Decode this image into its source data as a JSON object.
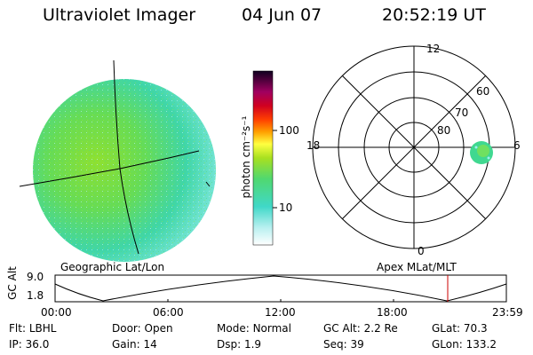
{
  "header": {
    "title": "Ultraviolet Imager",
    "date": "04 Jun 07",
    "time": "20:52:19 UT"
  },
  "colorbar": {
    "unit_label": "photon cm⁻²s⁻¹",
    "ticks": [
      "100",
      "10"
    ]
  },
  "polar_plot": {
    "lat_labels": [
      "80",
      "70",
      "60"
    ],
    "mlt_labels": {
      "top": "12",
      "left": "18",
      "right": "6",
      "bottom": "0"
    }
  },
  "timeline": {
    "left_title": "Geographic Lat/Lon",
    "right_title": "Apex MLat/MLT",
    "y_axis_label": "GC Alt",
    "y_ticks": [
      "9.0",
      "1.8"
    ],
    "x_ticks": [
      "00:00",
      "06:00",
      "12:00",
      "18:00",
      "23:59"
    ],
    "marker_color": "#cc0000"
  },
  "info": {
    "row1": [
      {
        "key": "Flt:",
        "value": "LBHL"
      },
      {
        "key": "Door:",
        "value": "Open"
      },
      {
        "key": "Mode:",
        "value": "Normal"
      },
      {
        "key": "GC Alt:",
        "value": "2.2 Re"
      },
      {
        "key": "GLat:",
        "value": "70.3"
      }
    ],
    "row2": [
      {
        "key": "IP:",
        "value": "36.0"
      },
      {
        "key": "Gain:",
        "value": "14"
      },
      {
        "key": "Dsp:",
        "value": "1.9"
      },
      {
        "key": "Seq:",
        "value": "39"
      },
      {
        "key": "GLon:",
        "value": "133.2"
      }
    ]
  }
}
